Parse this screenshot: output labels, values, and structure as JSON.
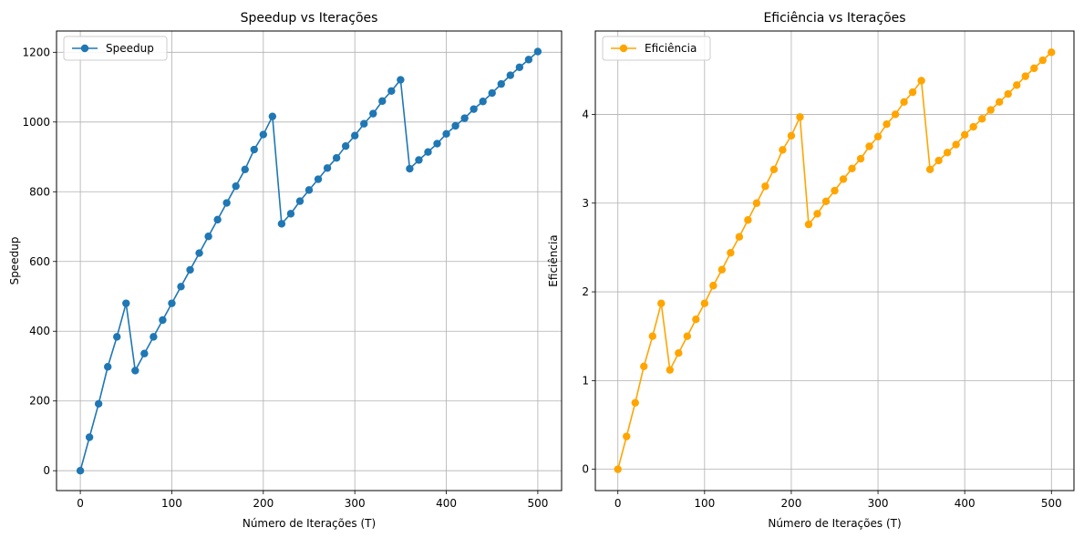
{
  "chart_data": [
    {
      "type": "line",
      "title": "Speedup vs Iterações",
      "xlabel": "Número de Iterações (T)",
      "ylabel": "Speedup",
      "xlim": [
        -26,
        526
      ],
      "ylim": [
        -57,
        1261
      ],
      "xticks": [
        0,
        100,
        200,
        300,
        400,
        500
      ],
      "yticks": [
        0,
        200,
        400,
        600,
        800,
        1000,
        1200
      ],
      "grid": true,
      "legend_position": "top-left",
      "color": "#1f77b4",
      "x": [
        0,
        10,
        20,
        30,
        40,
        50,
        60,
        70,
        80,
        90,
        100,
        110,
        120,
        130,
        140,
        150,
        160,
        170,
        180,
        190,
        200,
        210,
        220,
        230,
        240,
        250,
        260,
        270,
        280,
        290,
        300,
        310,
        320,
        330,
        340,
        350,
        360,
        370,
        380,
        390,
        400,
        410,
        420,
        430,
        440,
        450,
        460,
        470,
        480,
        490,
        500
      ],
      "series": [
        {
          "name": "Speedup",
          "values": [
            0,
            96,
            192,
            298,
            384,
            480,
            287,
            336,
            384,
            432,
            480,
            528,
            576,
            624,
            672,
            720,
            768,
            816,
            864,
            921,
            964,
            1016,
            708,
            737,
            773,
            805,
            836,
            868,
            897,
            931,
            961,
            995,
            1024,
            1060,
            1089,
            1121,
            866,
            891,
            914,
            938,
            966,
            989,
            1011,
            1037,
            1059,
            1083,
            1109,
            1134,
            1157,
            1179,
            1202
          ]
        }
      ]
    },
    {
      "type": "line",
      "title": "Eficiência vs Iterações",
      "xlabel": "Número de Iterações (T)",
      "ylabel": "Eficiência",
      "xlim": [
        -26,
        526
      ],
      "ylim": [
        -0.24,
        4.94
      ],
      "xticks": [
        0,
        100,
        200,
        300,
        400,
        500
      ],
      "yticks": [
        0,
        1,
        2,
        3,
        4
      ],
      "grid": true,
      "legend_position": "top-left",
      "color": "#ffa500",
      "x": [
        0,
        10,
        20,
        30,
        40,
        50,
        60,
        70,
        80,
        90,
        100,
        110,
        120,
        130,
        140,
        150,
        160,
        170,
        180,
        190,
        200,
        210,
        220,
        230,
        240,
        250,
        260,
        270,
        280,
        290,
        300,
        310,
        320,
        330,
        340,
        350,
        360,
        370,
        380,
        390,
        400,
        410,
        420,
        430,
        440,
        450,
        460,
        470,
        480,
        490,
        500
      ],
      "series": [
        {
          "name": "Eficiência",
          "values": [
            0,
            0.37,
            0.75,
            1.16,
            1.5,
            1.87,
            1.12,
            1.31,
            1.5,
            1.69,
            1.87,
            2.07,
            2.25,
            2.44,
            2.62,
            2.81,
            3.0,
            3.19,
            3.38,
            3.6,
            3.76,
            3.97,
            2.76,
            2.88,
            3.02,
            3.14,
            3.27,
            3.39,
            3.5,
            3.64,
            3.75,
            3.89,
            4.0,
            4.14,
            4.25,
            4.38,
            3.38,
            3.48,
            3.57,
            3.66,
            3.77,
            3.86,
            3.95,
            4.05,
            4.14,
            4.23,
            4.33,
            4.43,
            4.52,
            4.61,
            4.7
          ]
        }
      ]
    }
  ]
}
